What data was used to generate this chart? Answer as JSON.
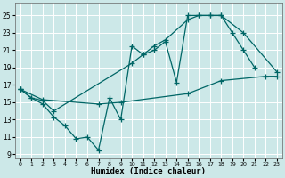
{
  "xlabel": "Humidex (Indice chaleur)",
  "bg_color": "#cce8e8",
  "grid_color": "#ffffff",
  "line_color": "#006666",
  "xlim": [
    -0.5,
    23.5
  ],
  "ylim": [
    8.5,
    26.5
  ],
  "yticks": [
    9,
    11,
    13,
    15,
    17,
    19,
    21,
    23,
    25
  ],
  "xticks": [
    0,
    1,
    2,
    3,
    4,
    5,
    6,
    7,
    8,
    9,
    10,
    11,
    12,
    13,
    14,
    15,
    16,
    17,
    18,
    19,
    20,
    21,
    22,
    23
  ],
  "line1_x": [
    0,
    1,
    2,
    3,
    4,
    5,
    6,
    7,
    8,
    9,
    10,
    11,
    12,
    13,
    14,
    15,
    16,
    17,
    18,
    19,
    20,
    21
  ],
  "line1_y": [
    16.5,
    15.5,
    14.8,
    13.3,
    12.3,
    10.8,
    11.0,
    9.5,
    15.5,
    13.0,
    21.5,
    20.5,
    21.0,
    22.0,
    17.3,
    25.0,
    25.0,
    25.0,
    25.0,
    23.0,
    21.0,
    19.0
  ],
  "line2_x": [
    0,
    1,
    2,
    3,
    10,
    11,
    12,
    13,
    15,
    16,
    17,
    18,
    20,
    23
  ],
  "line2_y": [
    16.5,
    15.5,
    15.2,
    14.0,
    19.5,
    20.5,
    21.5,
    22.2,
    24.5,
    25.0,
    25.0,
    25.0,
    23.0,
    18.5
  ],
  "line3_x": [
    0,
    2,
    7,
    9,
    15,
    18,
    22,
    23
  ],
  "line3_y": [
    16.5,
    15.3,
    14.8,
    15.0,
    16.0,
    17.5,
    18.0,
    18.0
  ]
}
